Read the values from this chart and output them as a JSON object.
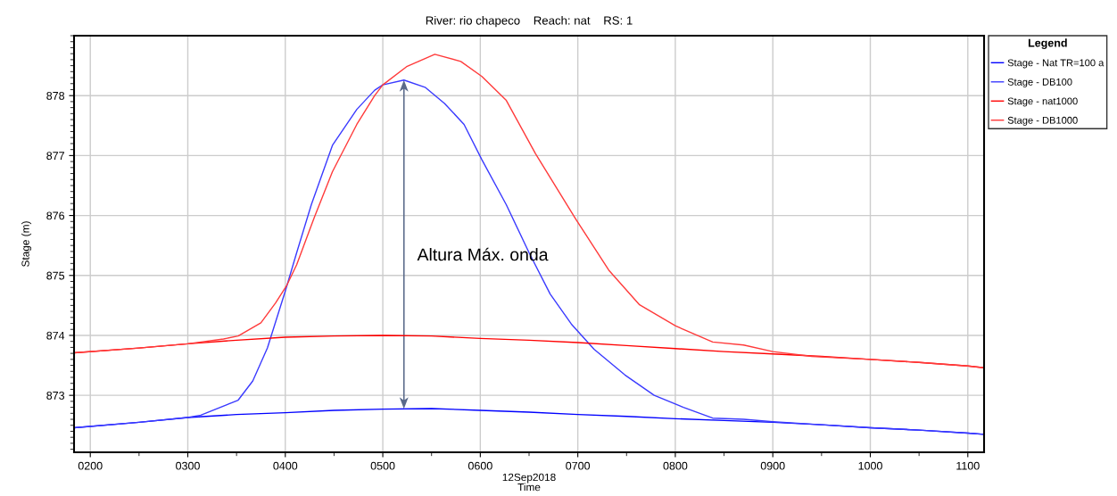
{
  "chart_data": {
    "type": "line",
    "title": "River: rio chapeco    Reach: nat    RS: 1",
    "xlabel": "Time",
    "ylabel": "Stage (m)",
    "legend_title": "Legend",
    "annotations": [
      "12Sep2018",
      "Altura Máx. onda"
    ],
    "xlim": [
      "2018-09-12T01:50",
      "2018-09-12T11:10"
    ],
    "ylim": [
      872.05,
      879.0
    ],
    "xticks": [
      {
        "value": "2018-09-12T02:00",
        "label": "0200"
      },
      {
        "value": "2018-09-12T03:00",
        "label": "0300"
      },
      {
        "value": "2018-09-12T04:00",
        "label": "0400"
      },
      {
        "value": "2018-09-12T05:00",
        "label": "0500"
      },
      {
        "value": "2018-09-12T06:00",
        "label": "0600"
      },
      {
        "value": "2018-09-12T07:00",
        "label": "0700"
      },
      {
        "value": "2018-09-12T08:00",
        "label": "0800"
      },
      {
        "value": "2018-09-12T09:00",
        "label": "0900"
      },
      {
        "value": "2018-09-12T10:00",
        "label": "1000"
      },
      {
        "value": "2018-09-12T11:00",
        "label": "1100"
      }
    ],
    "yticks": [
      873,
      874,
      875,
      876,
      877,
      878
    ],
    "grid": true,
    "legend": "right",
    "series": [
      {
        "name": "Stage - Nat TR=100 a",
        "color": "#0000ff",
        "x": [
          "2018-09-12T01:50",
          "2018-09-12T02:30",
          "2018-09-12T03:00",
          "2018-09-12T03:30",
          "2018-09-12T04:00",
          "2018-09-12T04:30",
          "2018-09-12T05:00",
          "2018-09-12T05:30",
          "2018-09-12T06:00",
          "2018-09-12T06:30",
          "2018-09-12T07:00",
          "2018-09-12T07:30",
          "2018-09-12T08:00",
          "2018-09-12T08:30",
          "2018-09-12T09:00",
          "2018-09-12T09:30",
          "2018-09-12T10:00",
          "2018-09-12T10:30",
          "2018-09-12T11:00",
          "2018-09-12T11:10"
        ],
        "values": [
          872.46,
          872.55,
          872.63,
          872.68,
          872.71,
          872.75,
          872.77,
          872.78,
          872.75,
          872.72,
          872.68,
          872.65,
          872.61,
          872.58,
          872.55,
          872.51,
          872.46,
          872.42,
          872.37,
          872.35
        ]
      },
      {
        "name": "Stage - DB100",
        "color": "#3a3aff",
        "x": [
          "2018-09-12T01:50",
          "2018-09-12T02:30",
          "2018-09-12T03:00",
          "2018-09-12T03:08",
          "2018-09-12T03:31",
          "2018-09-12T03:40",
          "2018-09-12T03:49",
          "2018-09-12T04:00",
          "2018-09-12T04:07",
          "2018-09-12T04:16",
          "2018-09-12T04:29",
          "2018-09-12T04:44",
          "2018-09-12T04:55",
          "2018-09-12T05:00",
          "2018-09-12T05:13",
          "2018-09-12T05:26",
          "2018-09-12T05:38",
          "2018-09-12T05:50",
          "2018-09-12T06:01",
          "2018-09-12T06:16",
          "2018-09-12T06:30",
          "2018-09-12T06:43",
          "2018-09-12T06:56",
          "2018-09-12T07:10",
          "2018-09-12T07:29",
          "2018-09-12T07:47",
          "2018-09-12T08:05",
          "2018-09-12T08:23",
          "2018-09-12T08:42",
          "2018-09-12T09:00",
          "2018-09-12T09:30",
          "2018-09-12T10:00",
          "2018-09-12T10:30",
          "2018-09-12T11:00",
          "2018-09-12T11:10"
        ],
        "values": [
          872.46,
          872.55,
          872.63,
          872.67,
          872.92,
          873.24,
          873.79,
          874.74,
          875.38,
          876.18,
          877.17,
          877.77,
          878.09,
          878.18,
          878.26,
          878.14,
          877.87,
          877.52,
          876.93,
          876.18,
          875.38,
          874.69,
          874.19,
          873.77,
          873.34,
          873.0,
          872.8,
          872.62,
          872.6,
          872.56,
          872.51,
          872.46,
          872.42,
          872.37,
          872.35
        ]
      },
      {
        "name": "Stage - nat1000",
        "color": "#ff0000",
        "x": [
          "2018-09-12T01:50",
          "2018-09-12T02:30",
          "2018-09-12T03:00",
          "2018-09-12T03:30",
          "2018-09-12T04:00",
          "2018-09-12T04:30",
          "2018-09-12T05:00",
          "2018-09-12T05:30",
          "2018-09-12T06:00",
          "2018-09-12T06:30",
          "2018-09-12T07:00",
          "2018-09-12T07:30",
          "2018-09-12T08:00",
          "2018-09-12T08:30",
          "2018-09-12T09:00",
          "2018-09-12T09:30",
          "2018-09-12T10:00",
          "2018-09-12T10:30",
          "2018-09-12T11:00",
          "2018-09-12T11:10"
        ],
        "values": [
          873.71,
          873.79,
          873.86,
          873.92,
          873.97,
          873.99,
          874.0,
          873.99,
          873.95,
          873.92,
          873.88,
          873.83,
          873.78,
          873.73,
          873.69,
          873.65,
          873.6,
          873.55,
          873.49,
          873.46
        ]
      },
      {
        "name": "Stage - DB1000",
        "color": "#ff3a3a",
        "x": [
          "2018-09-12T01:50",
          "2018-09-12T02:30",
          "2018-09-12T03:00",
          "2018-09-12T03:22",
          "2018-09-12T03:31",
          "2018-09-12T03:45",
          "2018-09-12T03:54",
          "2018-09-12T04:01",
          "2018-09-12T04:07",
          "2018-09-12T04:18",
          "2018-09-12T04:29",
          "2018-09-12T04:44",
          "2018-09-12T04:55",
          "2018-09-12T05:00",
          "2018-09-12T05:15",
          "2018-09-12T05:32",
          "2018-09-12T05:48",
          "2018-09-12T06:01",
          "2018-09-12T06:16",
          "2018-09-12T06:34",
          "2018-09-12T06:59",
          "2018-09-12T07:19",
          "2018-09-12T07:38",
          "2018-09-12T08:00",
          "2018-09-12T08:23",
          "2018-09-12T08:42",
          "2018-09-12T09:00",
          "2018-09-12T09:24",
          "2018-09-12T10:00",
          "2018-09-12T10:30",
          "2018-09-12T11:00",
          "2018-09-12T11:10"
        ],
        "values": [
          873.71,
          873.79,
          873.86,
          873.94,
          873.99,
          874.21,
          874.54,
          874.84,
          875.18,
          875.98,
          876.73,
          877.52,
          878.0,
          878.18,
          878.49,
          878.69,
          878.57,
          878.32,
          877.92,
          877.03,
          875.93,
          875.09,
          874.51,
          874.16,
          873.89,
          873.84,
          873.73,
          873.65,
          873.6,
          873.55,
          873.49,
          873.46
        ]
      }
    ]
  }
}
